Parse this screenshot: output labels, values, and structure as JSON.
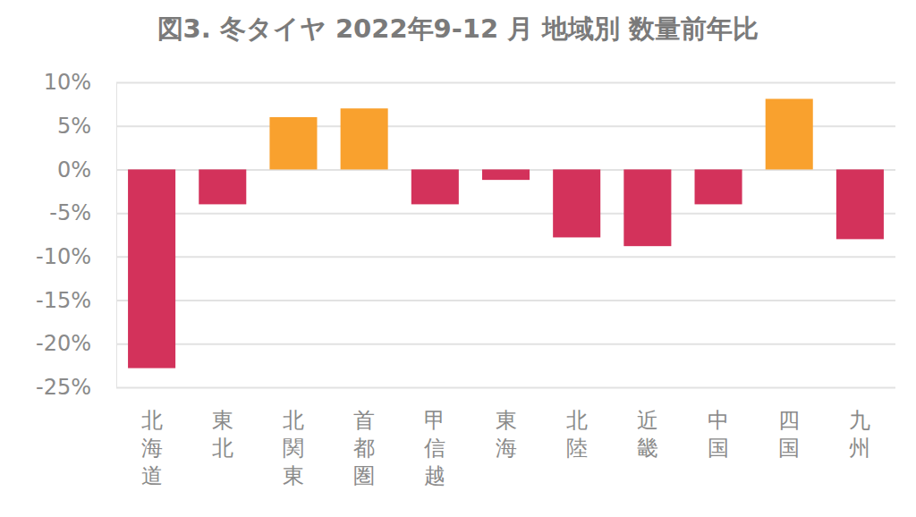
{
  "chart_data": {
    "type": "bar",
    "title": "図3. 冬タイヤ 2022年9-12 月 地域別 数量前年比",
    "categories": [
      "北海道",
      "東北",
      "北関東",
      "首都圏",
      "甲信越",
      "東海",
      "北陸",
      "近畿",
      "中国",
      "四国",
      "九州"
    ],
    "values": [
      -22.8,
      -4,
      6,
      7,
      -4,
      -1.2,
      -7.8,
      -8.8,
      -4,
      8.1,
      -8
    ],
    "colors": [
      "#d3325b",
      "#d3325b",
      "#f9a12e",
      "#f9a12e",
      "#d3325b",
      "#d3325b",
      "#d3325b",
      "#d3325b",
      "#d3325b",
      "#f9a12e",
      "#d3325b"
    ],
    "ylim": [
      -25,
      10
    ],
    "yticks": [
      {
        "value": -25,
        "label": "-25%"
      },
      {
        "value": -20,
        "label": "-20%"
      },
      {
        "value": -15,
        "label": "-15%"
      },
      {
        "value": -10,
        "label": "-10%"
      },
      {
        "value": -5,
        "label": "-5%"
      },
      {
        "value": 0,
        "label": "0%"
      },
      {
        "value": 5,
        "label": "5%"
      },
      {
        "value": 10,
        "label": "10%"
      }
    ],
    "grid": true
  }
}
